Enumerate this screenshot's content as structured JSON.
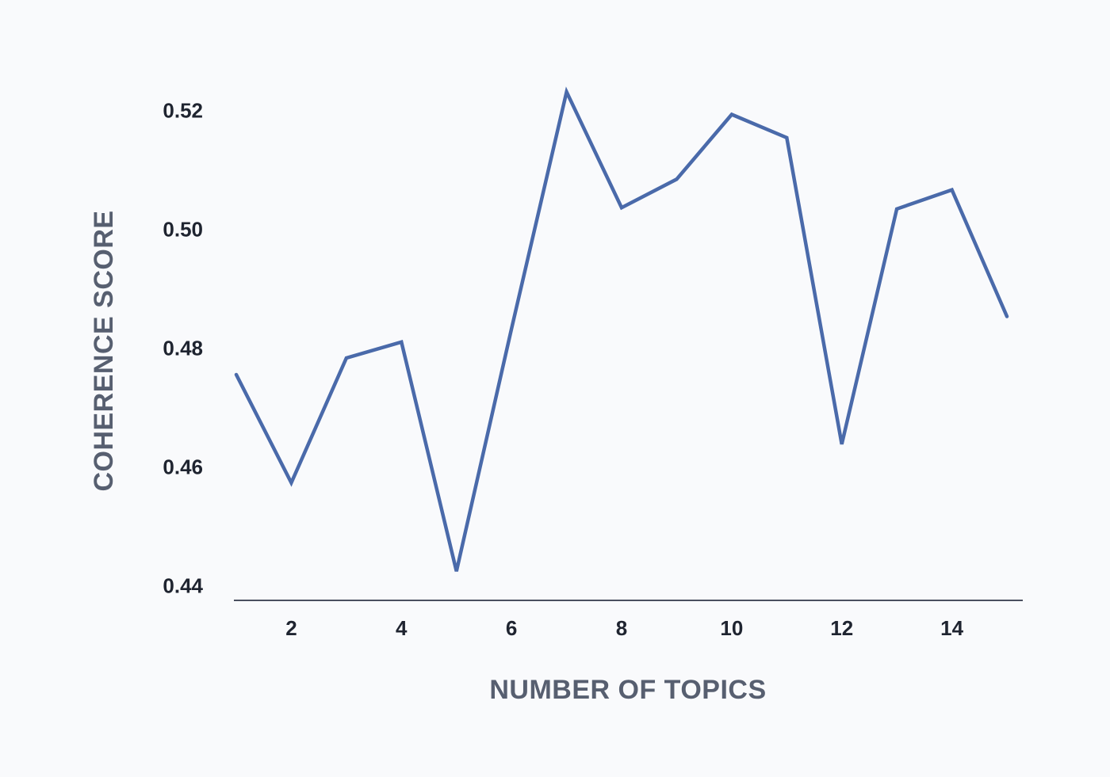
{
  "chart_data": {
    "type": "line",
    "title": "",
    "xlabel": "NUMBER OF TOPICS",
    "ylabel": "COHERENCE SCORE",
    "x": [
      1,
      2,
      3,
      4,
      5,
      6,
      7,
      8,
      9,
      10,
      11,
      12,
      13,
      14,
      15
    ],
    "series": [
      {
        "name": "",
        "values": [
          0.4755,
          0.4573,
          0.4783,
          0.481,
          0.4424,
          0.4832,
          0.5231,
          0.5036,
          0.5084,
          0.5193,
          0.5154,
          0.4638,
          0.5034,
          0.5066,
          0.4853
        ]
      }
    ],
    "xticks": [
      "2",
      "4",
      "6",
      "8",
      "10",
      "12",
      "14"
    ],
    "xtick_values": [
      2,
      4,
      6,
      8,
      10,
      12,
      14
    ],
    "yticks": [
      "0.44",
      "0.46",
      "0.48",
      "0.50",
      "0.52"
    ],
    "ytick_values": [
      0.44,
      0.46,
      0.48,
      0.5,
      0.52
    ],
    "xlim": [
      1,
      15
    ],
    "ylim": [
      0.4375,
      0.5255
    ],
    "grid": false,
    "legend": "none",
    "colors": {
      "line": "#4a6aaa",
      "background": "#f9fafc",
      "axis": "#4a5060",
      "title_text": "#575f70",
      "tick_text": "#1f2430"
    }
  }
}
